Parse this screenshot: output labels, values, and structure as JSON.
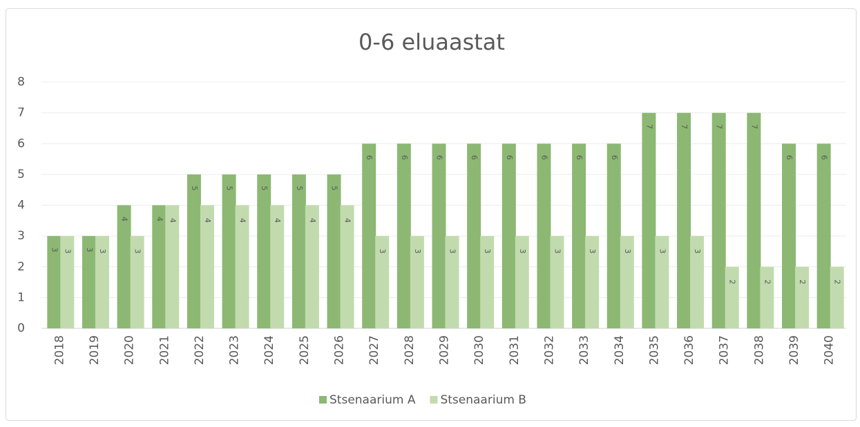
{
  "chart_data": {
    "type": "bar",
    "title": "0-6 eluaastat",
    "categories": [
      "2018",
      "2019",
      "2020",
      "2021",
      "2022",
      "2023",
      "2024",
      "2025",
      "2026",
      "2027",
      "2028",
      "2029",
      "2030",
      "2031",
      "2032",
      "2033",
      "2034",
      "2035",
      "2036",
      "2037",
      "2038",
      "2039",
      "2040"
    ],
    "series": [
      {
        "name": "Stsenaarium A",
        "color": "#8cb873",
        "values": [
          3,
          3,
          4,
          4,
          5,
          5,
          5,
          5,
          5,
          6,
          6,
          6,
          6,
          6,
          6,
          6,
          6,
          7,
          7,
          7,
          7,
          6,
          6
        ]
      },
      {
        "name": "Stsenaarium B",
        "color": "#c2dbae",
        "values": [
          3,
          3,
          3,
          4,
          4,
          4,
          4,
          4,
          4,
          3,
          3,
          3,
          3,
          3,
          3,
          3,
          3,
          3,
          3,
          2,
          2,
          2,
          2
        ]
      }
    ],
    "ylim": [
      0,
      8
    ],
    "yticks": [
      0,
      1,
      2,
      3,
      4,
      5,
      6,
      7,
      8
    ],
    "grid": true,
    "legend": "bottom"
  }
}
